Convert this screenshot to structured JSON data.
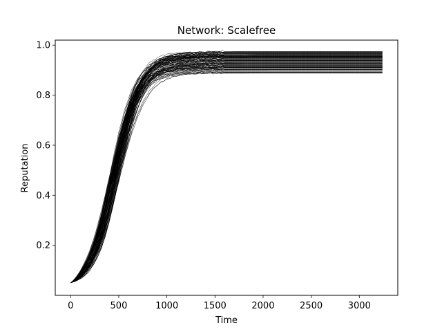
{
  "chart_data": {
    "type": "line",
    "title": "Network: Scalefree",
    "xlabel": "Time",
    "ylabel": "Reputation",
    "xlim": [
      -160,
      3400
    ],
    "ylim": [
      0.0,
      1.02
    ],
    "x_ticks": [
      0,
      500,
      1000,
      1500,
      2000,
      2500,
      3000
    ],
    "y_ticks": [
      0.2,
      0.4,
      0.6,
      0.8,
      1.0
    ],
    "x_tick_labels": [
      "0",
      "500",
      "1000",
      "1500",
      "2000",
      "2500",
      "3000"
    ],
    "y_tick_labels": [
      "0.2",
      "0.4",
      "0.6",
      "0.8",
      "1.0"
    ],
    "grid": false,
    "legend": "none",
    "line_color": "#000000",
    "x_range": [
      0,
      3250
    ],
    "start_value": 0.05,
    "series_count": 100,
    "final_value_range": [
      0.885,
      0.975
    ],
    "midpoint_time_range": [
      400,
      520
    ],
    "curve_shape": "logistic"
  }
}
